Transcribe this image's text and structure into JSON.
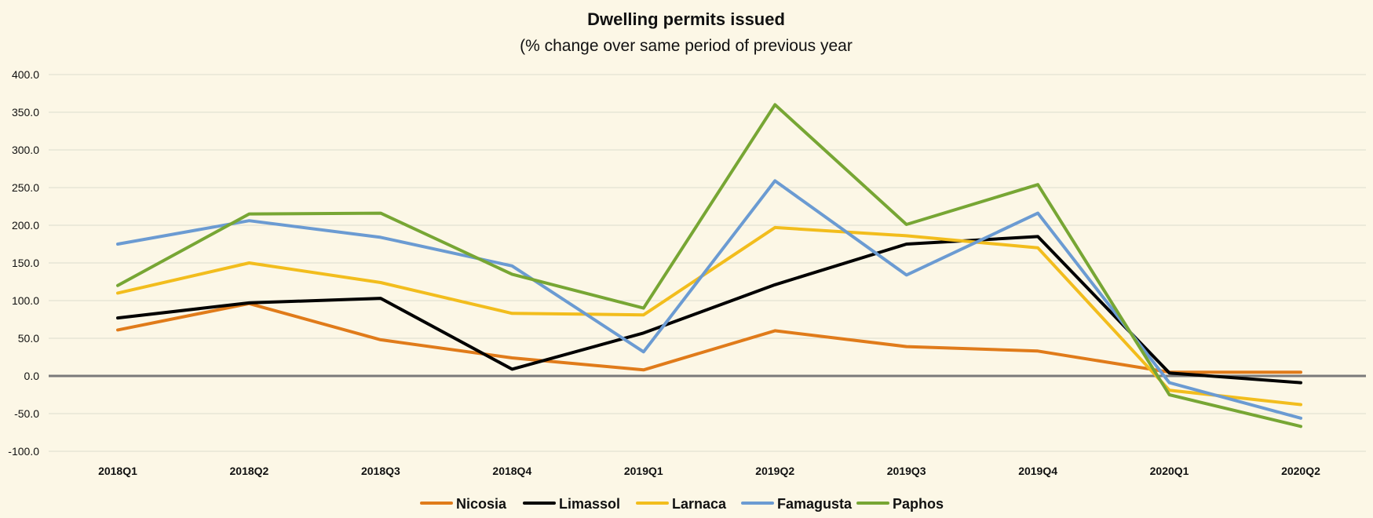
{
  "chart_data": {
    "type": "line",
    "title": "Dwelling permits issued",
    "subtitle": "(% change over same period of previous year",
    "categories": [
      "2018Q1",
      "2018Q2",
      "2018Q3",
      "2018Q4",
      "2019Q1",
      "2019Q2",
      "2019Q3",
      "2019Q4",
      "2020Q1",
      "2020Q2"
    ],
    "ylim": [
      -100,
      400
    ],
    "yticks": [
      "400.0",
      "350.0",
      "300.0",
      "250.0",
      "200.0",
      "150.0",
      "100.0",
      "50.0",
      "0.0",
      "-50.0",
      "-100.0"
    ],
    "grid": true,
    "legend_position": "bottom",
    "series": [
      {
        "name": "Nicosia",
        "color": "#e07b1a",
        "values": [
          61,
          96,
          48,
          24,
          8,
          60,
          39,
          33,
          5,
          5
        ]
      },
      {
        "name": "Limassol",
        "color": "#000000",
        "values": [
          77,
          97,
          103,
          9,
          57,
          121,
          175,
          185,
          4,
          -9
        ]
      },
      {
        "name": "Larnaca",
        "color": "#f2bd1d",
        "values": [
          110,
          150,
          124,
          83,
          81,
          197,
          186,
          170,
          -19,
          -38
        ]
      },
      {
        "name": "Famagusta",
        "color": "#6b9bd2",
        "values": [
          175,
          206,
          184,
          146,
          32,
          259,
          134,
          216,
          -9,
          -56
        ]
      },
      {
        "name": "Paphos",
        "color": "#77a634",
        "values": [
          120,
          215,
          216,
          135,
          90,
          360,
          201,
          254,
          -25,
          -67
        ]
      }
    ]
  }
}
